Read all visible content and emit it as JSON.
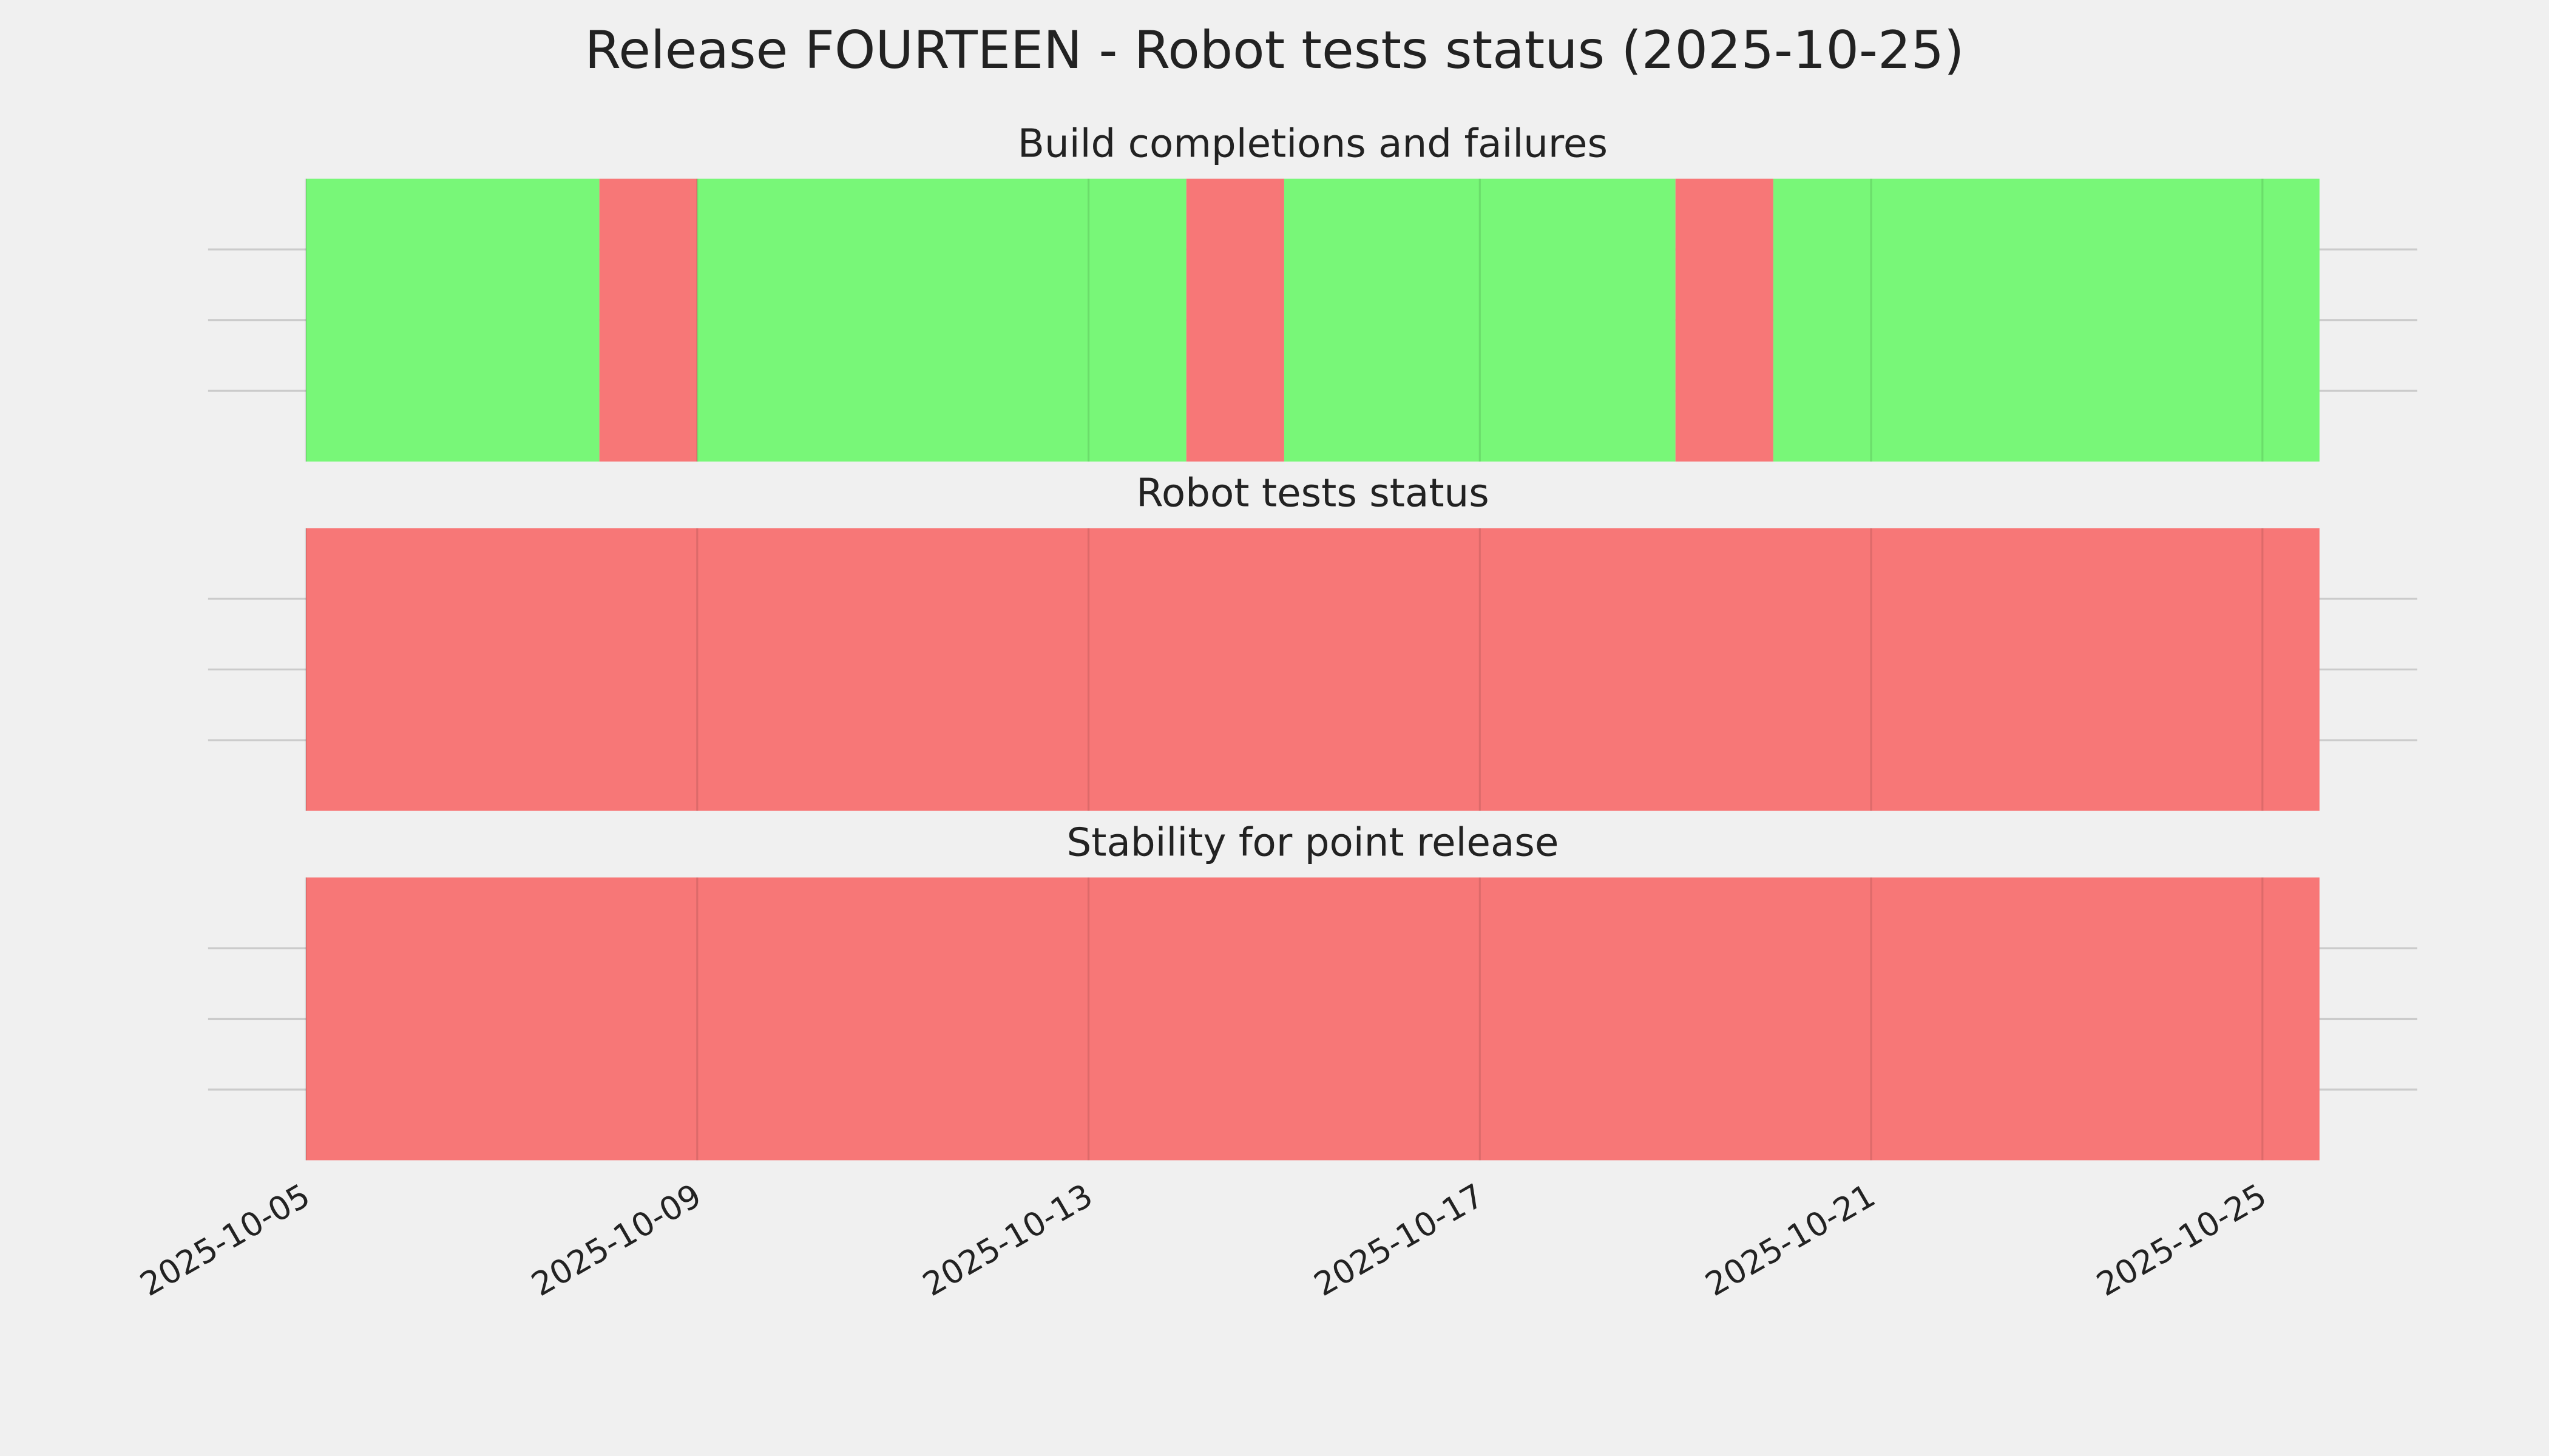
{
  "title": "Release FOURTEEN - Robot tests status (2025-10-25)",
  "chart_data": [
    {
      "type": "span",
      "title": "Build completions and failures",
      "spans": [
        {
          "start": "2025-10-05",
          "end": "2025-10-08",
          "color": "#78f778"
        },
        {
          "start": "2025-10-08",
          "end": "2025-10-09",
          "color": "#f77777"
        },
        {
          "start": "2025-10-09",
          "end": "2025-10-14",
          "color": "#78f778"
        },
        {
          "start": "2025-10-14",
          "end": "2025-10-15",
          "color": "#f77777"
        },
        {
          "start": "2025-10-15",
          "end": "2025-10-19",
          "color": "#78f778"
        },
        {
          "start": "2025-10-19",
          "end": "2025-10-20",
          "color": "#f77777"
        },
        {
          "start": "2025-10-20",
          "end": "2025-10-25T14:00",
          "color": "#78f778"
        }
      ],
      "xlim": [
        "2025-10-04",
        "2025-10-26T14:00"
      ],
      "xticks": [
        "2025-10-05",
        "2025-10-09",
        "2025-10-13",
        "2025-10-17",
        "2025-10-21",
        "2025-10-25"
      ],
      "ylim": [
        0,
        1
      ],
      "yticks": [
        0.25,
        0.5,
        0.75
      ],
      "grid": true
    },
    {
      "type": "span",
      "title": "Robot tests status",
      "spans": [
        {
          "start": "2025-10-05",
          "end": "2025-10-25T14:00",
          "color": "#f77777"
        }
      ],
      "xlim": [
        "2025-10-04",
        "2025-10-26T14:00"
      ],
      "xticks": [
        "2025-10-05",
        "2025-10-09",
        "2025-10-13",
        "2025-10-17",
        "2025-10-21",
        "2025-10-25"
      ],
      "ylim": [
        0,
        1
      ],
      "yticks": [
        0.25,
        0.5,
        0.75
      ],
      "grid": true
    },
    {
      "type": "span",
      "title": "Stability for point release",
      "spans": [
        {
          "start": "2025-10-05",
          "end": "2025-10-25T14:00",
          "color": "#f77777"
        }
      ],
      "xlim": [
        "2025-10-04",
        "2025-10-26T14:00"
      ],
      "xticks": [
        "2025-10-05",
        "2025-10-09",
        "2025-10-13",
        "2025-10-17",
        "2025-10-21",
        "2025-10-25"
      ],
      "ylim": [
        0,
        1
      ],
      "yticks": [
        0.25,
        0.5,
        0.75
      ],
      "grid": true,
      "xtick_labels": true
    }
  ]
}
